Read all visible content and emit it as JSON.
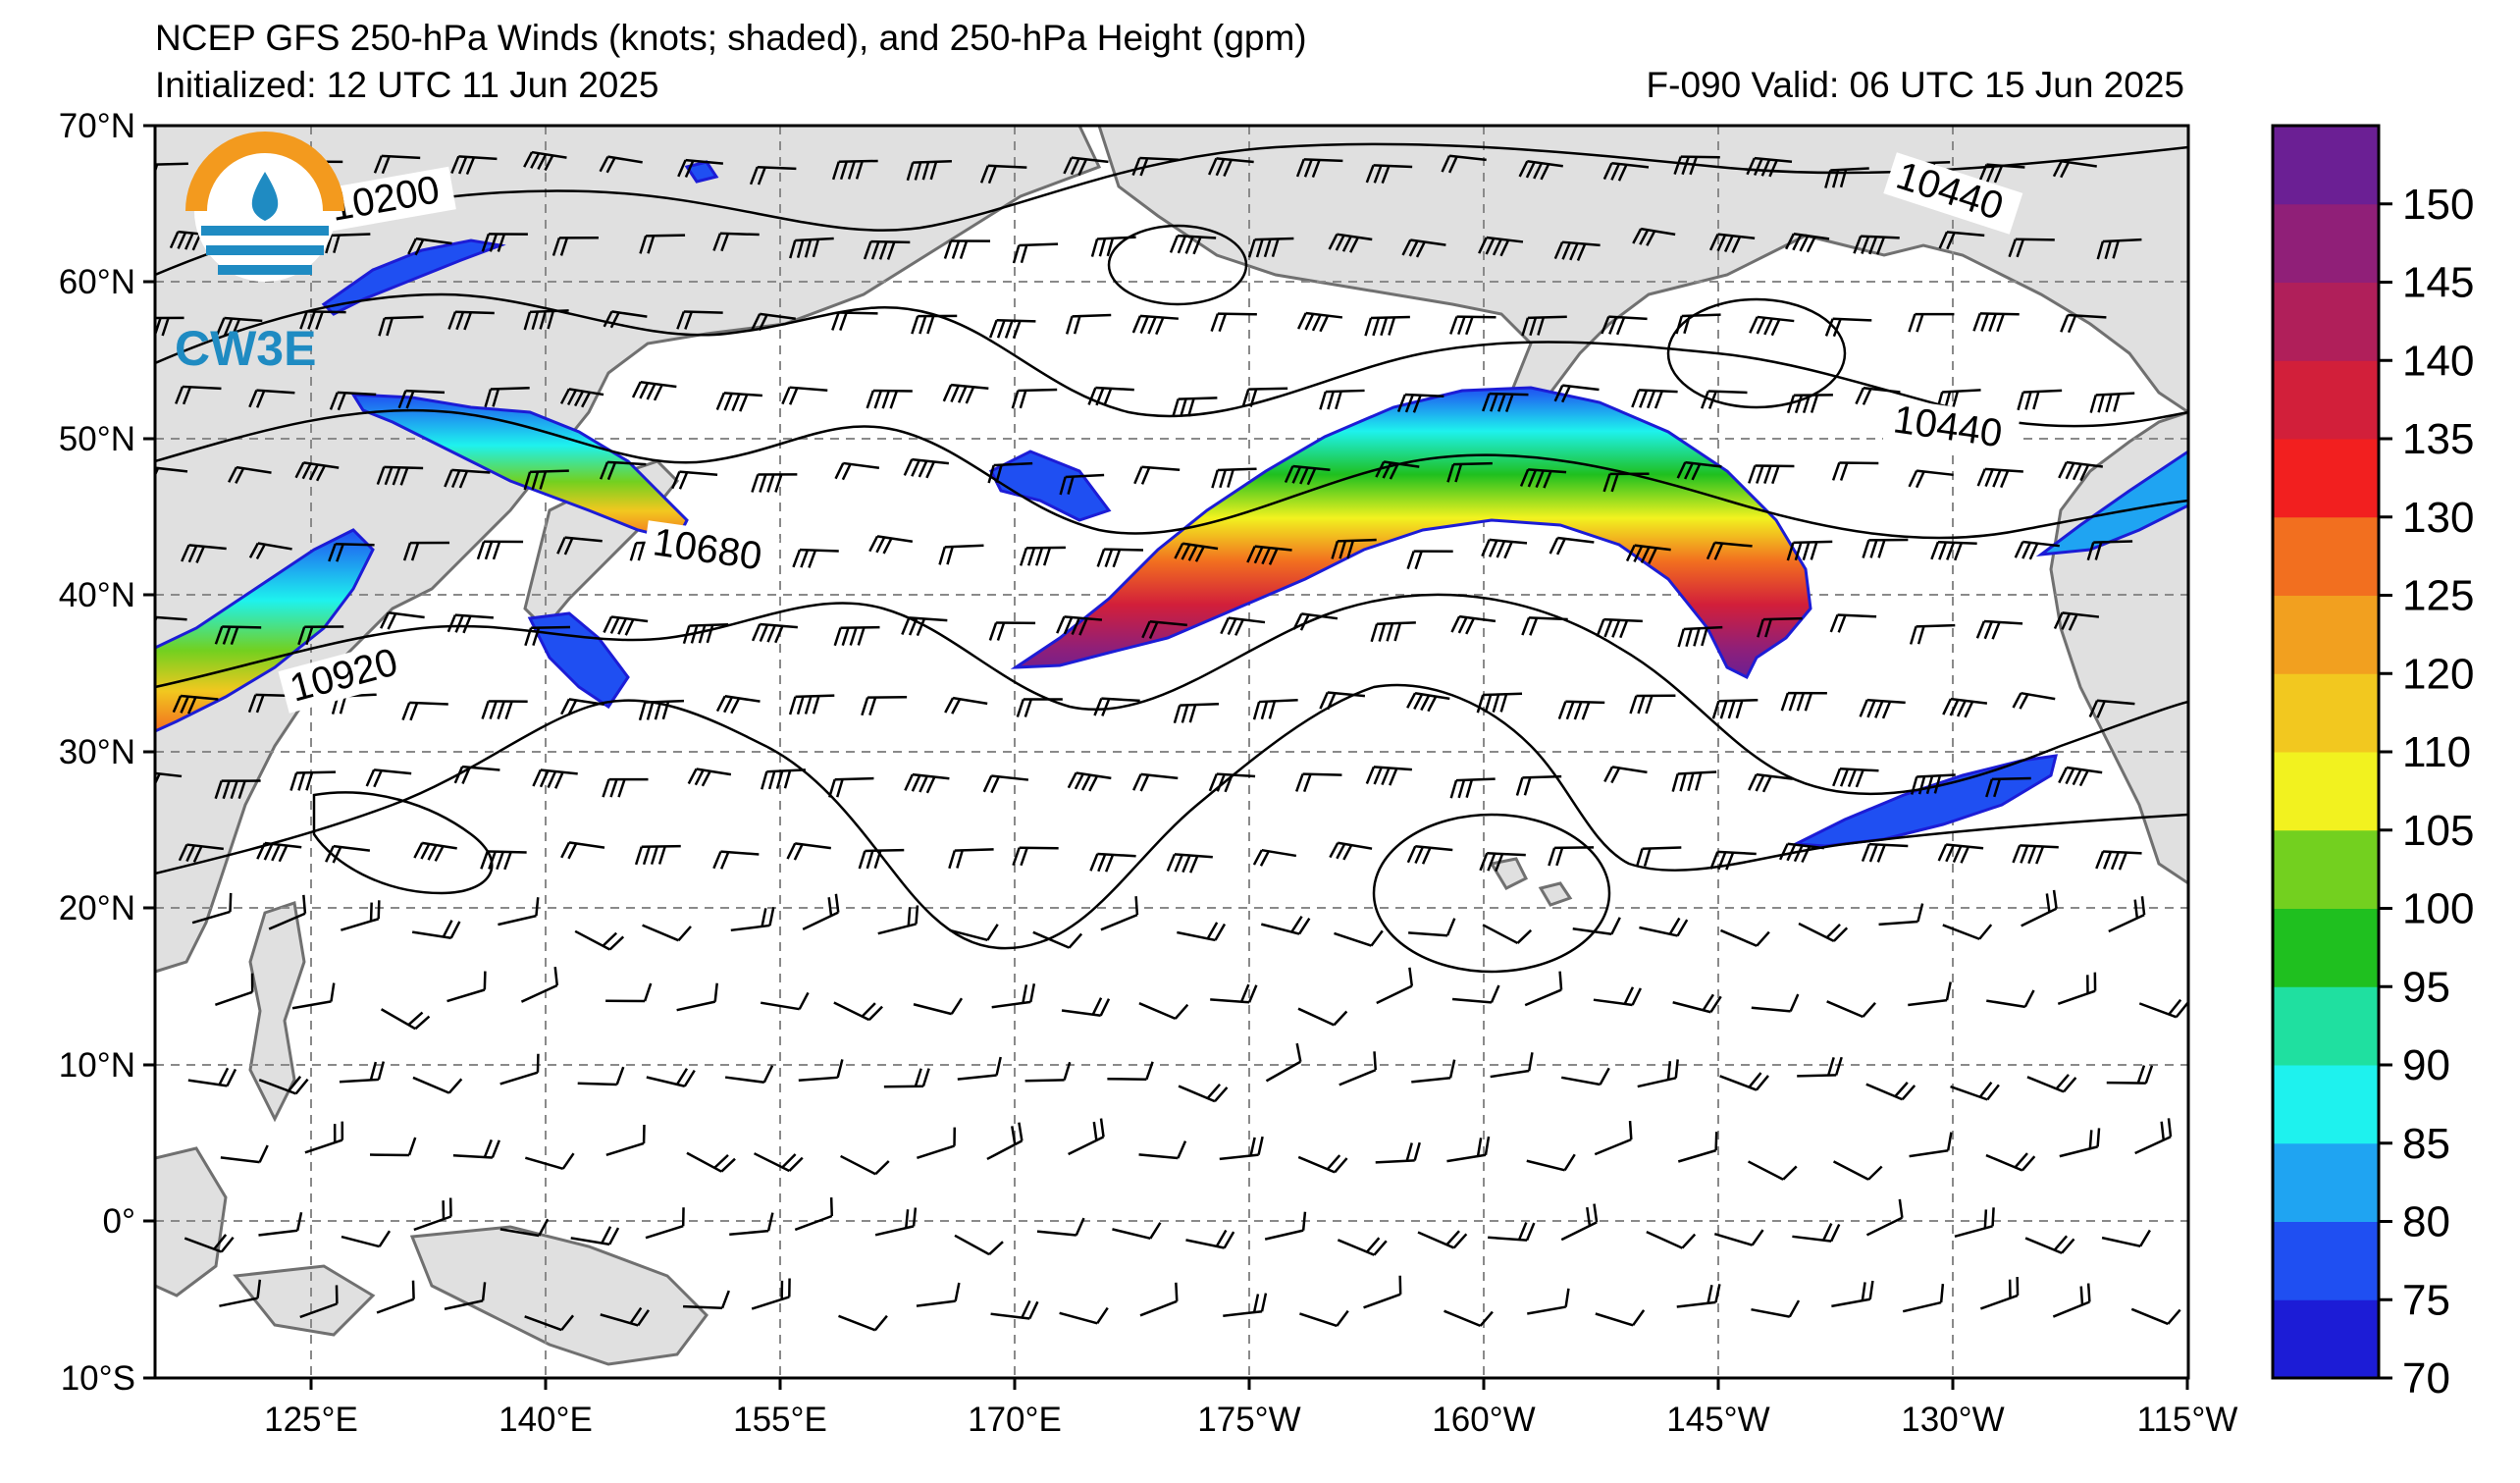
{
  "title": "NCEP GFS 250-hPa Winds (knots; shaded), and 250-hPa Height (gpm)",
  "initialized": "Initialized: 12 UTC 11 Jun 2025",
  "valid": "F-090  Valid: 06 UTC 15 Jun 2025",
  "logo": {
    "text": "CW3E",
    "colors": {
      "orange": "#f39a1e",
      "blue": "#1f8bc2"
    }
  },
  "map": {
    "lat_range": [
      -10,
      70
    ],
    "lon_range": [
      115,
      245
    ],
    "lat_labels": [
      "70°N",
      "60°N",
      "50°N",
      "40°N",
      "30°N",
      "20°N",
      "10°N",
      "0°",
      "10°S"
    ],
    "lon_labels": [
      "125°E",
      "140°E",
      "155°E",
      "170°E",
      "175°W",
      "160°W",
      "145°W",
      "130°W",
      "115°W"
    ],
    "land_color": "#e0e0e0",
    "coast_color": "#707070",
    "grid": "dashed"
  },
  "colorbar": {
    "ticks": [
      "70",
      "75",
      "80",
      "85",
      "90",
      "95",
      "100",
      "105",
      "110",
      "120",
      "125",
      "130",
      "135",
      "140",
      "145",
      "150"
    ],
    "colors": [
      "#1c1cd6",
      "#1f4ff2",
      "#1fa4f2",
      "#1ef2ee",
      "#1fe0a0",
      "#1fc01f",
      "#73d01f",
      "#f2f21f",
      "#f2c81f",
      "#f2a01f",
      "#f26f1f",
      "#f21f1f",
      "#d21f3a",
      "#b01f5a",
      "#901f78",
      "#6b1f94"
    ]
  },
  "contours": {
    "labels": [
      "10200",
      "10440",
      "10440",
      "10680",
      "10920"
    ]
  }
}
